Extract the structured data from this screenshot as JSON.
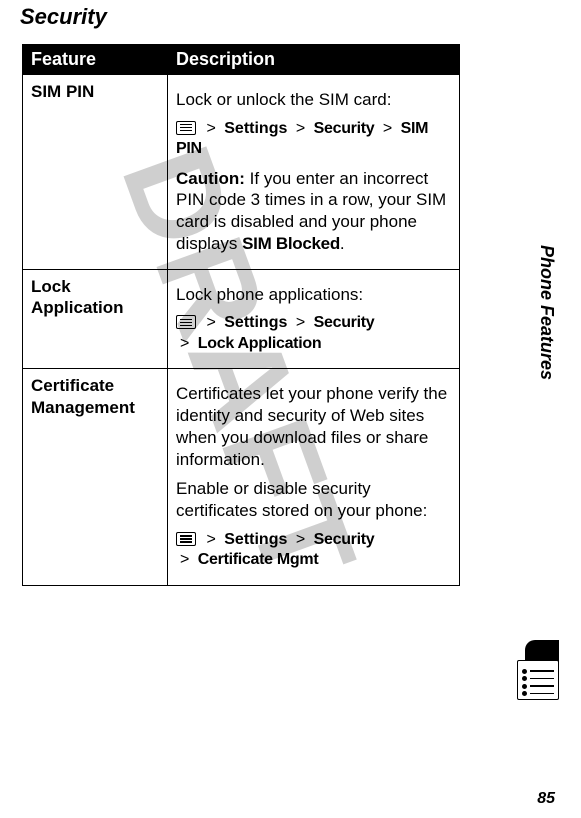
{
  "page": {
    "title": "Security",
    "side_label": "Phone Features",
    "page_number": "85"
  },
  "table": {
    "header_feature": "Feature",
    "header_description": "Description",
    "nav": {
      "settings": "Settings",
      "security": "Security",
      "sim_pin": "SIM PIN",
      "lock_application": "Lock Application",
      "certificate_mgmt": "Certificate Mgmt",
      "sim_blocked": "SIM Blocked",
      "sep": ">"
    },
    "rows": [
      {
        "feature": "SIM PIN",
        "desc_intro": "Lock or unlock the SIM card:",
        "caution_label": "Caution:",
        "caution_text": " If you enter an incorrect PIN code 3 times in a row, your SIM card is disabled and your phone displays ",
        "period": "."
      },
      {
        "feature_line1": "Lock",
        "feature_line2": "Application",
        "desc_intro": "Lock phone applications:"
      },
      {
        "feature_line1": "Certificate",
        "feature_line2": "Management",
        "desc_para1": "Certificates let your phone verify the identity and security of Web sites when you download files or share information.",
        "desc_para2": "Enable or disable security certificates stored on your phone:"
      }
    ]
  },
  "style": {
    "header_bg": "#000000",
    "header_fg": "#ffffff",
    "border_color": "#000000",
    "watermark_color": "#cfcfcf"
  }
}
